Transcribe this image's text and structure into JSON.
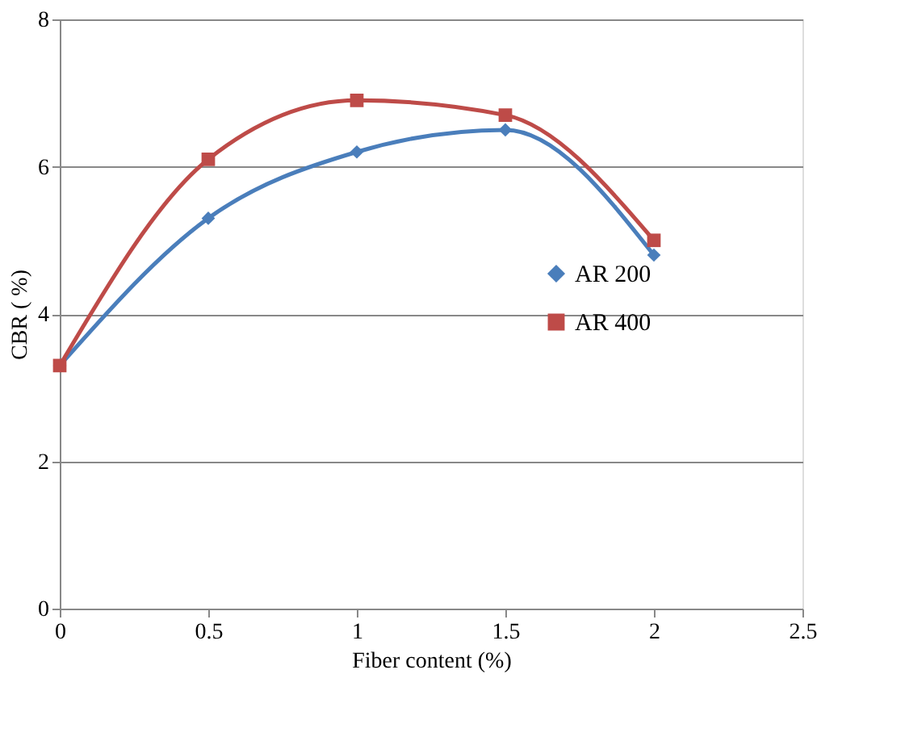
{
  "chart_data": {
    "type": "line",
    "xlabel": "Fiber content (%)",
    "ylabel": "CBR ( %)",
    "x": [
      0,
      0.5,
      1,
      1.5,
      2
    ],
    "series": [
      {
        "name": "AR 200",
        "color": "#4a7ebb",
        "marker": "diamond",
        "values": [
          3.3,
          5.3,
          6.2,
          6.5,
          4.8
        ]
      },
      {
        "name": "AR 400",
        "color": "#be4b48",
        "marker": "square",
        "values": [
          3.3,
          6.1,
          6.9,
          6.7,
          5.0
        ]
      }
    ],
    "xlim": [
      0,
      2.5
    ],
    "xticks": [
      0,
      0.5,
      1,
      1.5,
      2,
      2.5
    ],
    "ylim": [
      0,
      8
    ],
    "yticks": [
      0,
      2,
      4,
      6,
      8
    ],
    "grid": "y",
    "legend": "right",
    "line_style": "solid"
  }
}
